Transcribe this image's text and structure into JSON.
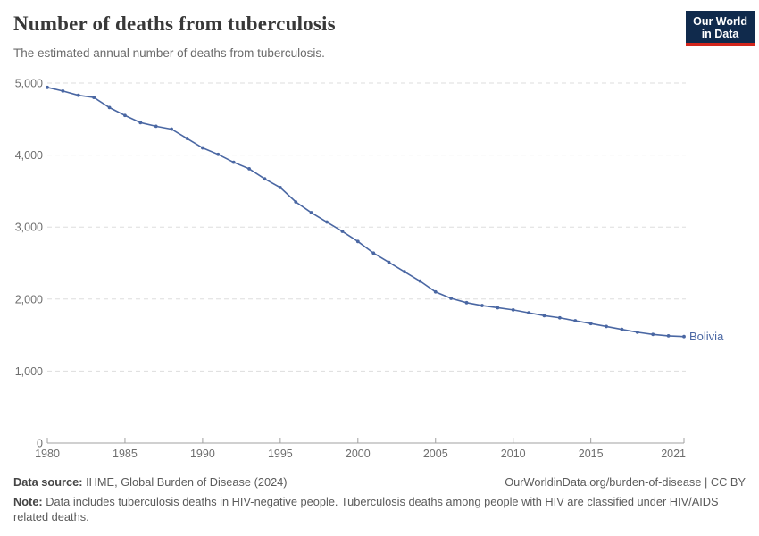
{
  "header": {
    "title": "Number of deaths from tuberculosis",
    "subtitle": "The estimated annual number of deaths from tuberculosis.",
    "logo_line1": "Our World",
    "logo_line2": "in Data"
  },
  "colors": {
    "series_blue": "#4A67A3",
    "logo_navy": "#102A4C",
    "logo_red": "#D3261C",
    "grid": "#dddddd",
    "axis": "#a0a0a0",
    "tick_text": "#6e6e6e"
  },
  "chart_data": {
    "type": "line",
    "title": "Number of deaths from tuberculosis",
    "xlabel": "",
    "ylabel": "",
    "xlim": [
      1980,
      2021
    ],
    "ylim": [
      0,
      5000
    ],
    "grid": "horizontal-dashed",
    "legend_position": "end-of-line-label",
    "x_ticks": [
      1980,
      1985,
      1990,
      1995,
      2000,
      2005,
      2010,
      2015,
      2021
    ],
    "y_ticks": [
      0,
      1000,
      2000,
      3000,
      4000,
      5000
    ],
    "series": [
      {
        "name": "Bolivia",
        "color": "#4A67A3",
        "x": [
          1980,
          1981,
          1982,
          1983,
          1984,
          1985,
          1986,
          1987,
          1988,
          1989,
          1990,
          1991,
          1992,
          1993,
          1994,
          1995,
          1996,
          1997,
          1998,
          1999,
          2000,
          2001,
          2002,
          2003,
          2004,
          2005,
          2006,
          2007,
          2008,
          2009,
          2010,
          2011,
          2012,
          2013,
          2014,
          2015,
          2016,
          2017,
          2018,
          2019,
          2020,
          2021
        ],
        "values": [
          4940,
          4890,
          4830,
          4800,
          4660,
          4550,
          4450,
          4400,
          4360,
          4230,
          4100,
          4010,
          3900,
          3810,
          3670,
          3550,
          3350,
          3200,
          3070,
          2940,
          2800,
          2640,
          2510,
          2380,
          2250,
          2100,
          2010,
          1950,
          1910,
          1880,
          1850,
          1810,
          1770,
          1740,
          1700,
          1660,
          1620,
          1580,
          1540,
          1510,
          1490,
          1480
        ]
      }
    ]
  },
  "footer": {
    "data_source_label": "Data source:",
    "data_source_text": " IHME, Global Burden of Disease (2024)",
    "attribution": "OurWorldinData.org/burden-of-disease | CC BY",
    "note_label": "Note:",
    "note_text": " Data includes tuberculosis deaths in HIV-negative people. Tuberculosis deaths among people with HIV are classified under HIV/AIDS related deaths."
  }
}
